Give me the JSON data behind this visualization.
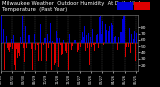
{
  "title": "Milwaukee Weather  Outdoor Humidity  At Daily High  Temperature  (Past Year)",
  "ylim": [
    10,
    100
  ],
  "num_days": 365,
  "bg_color": "#000000",
  "plot_bg_color": "#000000",
  "bar_color_above": "#0000dd",
  "bar_color_below": "#dd0000",
  "mean_humidity": 55,
  "title_fontsize": 3.8,
  "tick_fontsize": 3.2,
  "yticks": [
    20,
    30,
    40,
    50,
    60,
    70,
    80
  ],
  "grid_color": "#666666",
  "grid_linestyle": "--",
  "grid_linewidth": 0.3,
  "spine_color": "#888888",
  "spine_linewidth": 0.4,
  "seed": 99,
  "amplitude": 22,
  "seasonal_amplitude": 8,
  "seasonal_phase": 60
}
